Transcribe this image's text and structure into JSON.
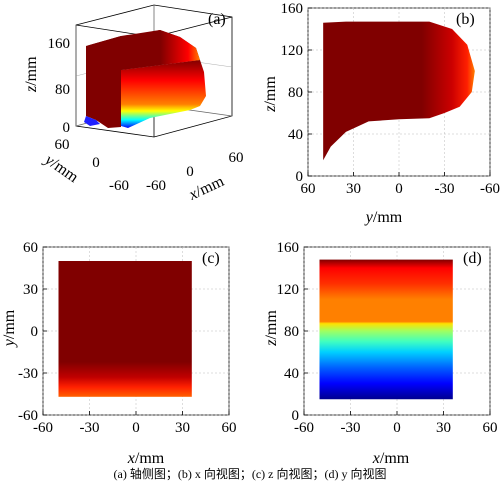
{
  "caption": "(a)  轴侧图；(b) x 向视图；(c) z 向视图；(d) y 向视图",
  "colors": {
    "colormap": [
      "#00008f",
      "#0000ff",
      "#0080ff",
      "#00ffff",
      "#80ff80",
      "#ffff00",
      "#ff8000",
      "#ff0000",
      "#800000"
    ]
  },
  "chart_data": [
    {
      "panel": "(a)",
      "type": "area",
      "view": "axonometric",
      "z_ticks": [
        "160",
        "80",
        "0"
      ],
      "y_ticks": [
        "60",
        "0",
        "-60"
      ],
      "x_ticks": [
        "-60",
        "0",
        "60"
      ],
      "xlabel_var": "x",
      "xlabel_unit": "/mm",
      "ylabel_var": "y",
      "ylabel_unit": "/mm",
      "zlabel_var": "z",
      "zlabel_unit": "/mm"
    },
    {
      "panel": "(b)",
      "type": "area",
      "view": "x-direction",
      "x_ticks": [
        "60",
        "30",
        "0",
        "-30",
        "-60"
      ],
      "y_ticks": [
        "0",
        "40",
        "80",
        "120",
        "160"
      ],
      "xlim": [
        60,
        -60
      ],
      "ylim": [
        0,
        160
      ],
      "xlabel_var": "y",
      "xlabel_unit": "/mm",
      "ylabel_var": "z",
      "ylabel_unit": "/mm",
      "top_z": 146,
      "profile_front": {
        "y": [
          50,
          35,
          -20,
          -35,
          -45,
          -50,
          -48,
          -40,
          -30
        ],
        "z": [
          146,
          147,
          147,
          140,
          125,
          100,
          80,
          66,
          60
        ]
      },
      "profile_bottom": {
        "y": [
          50,
          45,
          35,
          20,
          0,
          -20,
          -30
        ],
        "z": [
          15,
          28,
          42,
          52,
          54,
          55,
          60
        ]
      },
      "color_by_y": [
        {
          "y": 50,
          "color": "#800000"
        },
        {
          "y": -15,
          "color": "#800000"
        },
        {
          "y": -35,
          "color": "#cc0000"
        },
        {
          "y": -45,
          "color": "#ff2000"
        },
        {
          "y": -50,
          "color": "#ff8000"
        }
      ]
    },
    {
      "panel": "(c)",
      "type": "heatmap",
      "view": "z-direction",
      "x_ticks": [
        "-60",
        "-30",
        "0",
        "30",
        "60"
      ],
      "y_ticks": [
        "60",
        "30",
        "0",
        "-30",
        "-60"
      ],
      "xlim": [
        -60,
        60
      ],
      "ylim": [
        -60,
        60
      ],
      "xlabel_var": "x",
      "xlabel_unit": "/mm",
      "ylabel_var": "y",
      "ylabel_unit": "/mm",
      "x_extent": [
        -50,
        36
      ],
      "y_extent": [
        -47,
        50
      ],
      "color_by_y": [
        {
          "y": 50,
          "color": "#800000"
        },
        {
          "y": -22,
          "color": "#800000"
        },
        {
          "y": -33,
          "color": "#c00000"
        },
        {
          "y": -40,
          "color": "#ff2000"
        },
        {
          "y": -47,
          "color": "#ff6000"
        }
      ]
    },
    {
      "panel": "(d)",
      "type": "heatmap",
      "view": "y-direction",
      "x_ticks": [
        "-60",
        "-30",
        "0",
        "30",
        "60"
      ],
      "y_ticks": [
        "0",
        "40",
        "80",
        "120",
        "160"
      ],
      "xlim": [
        -60,
        60
      ],
      "ylim": [
        0,
        160
      ],
      "xlabel_var": "x",
      "xlabel_unit": "/mm",
      "ylabel_var": "z",
      "ylabel_unit": "/mm",
      "x_extent": [
        -50,
        36
      ],
      "z_extent": [
        15,
        148
      ],
      "color_by_z": [
        {
          "z": 15,
          "color": "#00008f"
        },
        {
          "z": 30,
          "color": "#0000ff"
        },
        {
          "z": 45,
          "color": "#0060ff"
        },
        {
          "z": 60,
          "color": "#00d0ff"
        },
        {
          "z": 70,
          "color": "#40ffc0"
        },
        {
          "z": 80,
          "color": "#a0ff60"
        },
        {
          "z": 87,
          "color": "#ffe000"
        },
        {
          "z": 89,
          "color": "#ff8000"
        },
        {
          "z": 110,
          "color": "#ff8000"
        },
        {
          "z": 125,
          "color": "#ff3000"
        },
        {
          "z": 140,
          "color": "#ff0000"
        },
        {
          "z": 148,
          "color": "#800000"
        }
      ]
    }
  ]
}
